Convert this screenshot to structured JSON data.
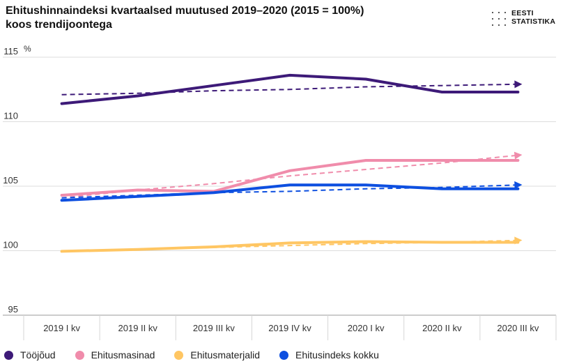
{
  "title": {
    "line1": "Ehitushinnaindeksi kvartaalsed muutused 2019–2020 (2015 = 100%)",
    "line2": "koos trendijoontega"
  },
  "logo": {
    "line1": "EESTI",
    "line2": "STATISTIKA"
  },
  "chart_data": {
    "type": "line",
    "title": "Ehitushinnaindeksi kvartaalsed muutused 2019–2020 (2015 = 100%) koos trendijoontega",
    "ylabel": "%",
    "xlabel": "",
    "categories": [
      "2019 I kv",
      "2019 II kv",
      "2019 III kv",
      "2019 IV kv",
      "2020 I kv",
      "2020 II kv",
      "2020 III kv"
    ],
    "ylim": [
      95,
      115
    ],
    "yticks": [
      95,
      100,
      105,
      110,
      115
    ],
    "grid": true,
    "legend_position": "bottom",
    "series": [
      {
        "name": "Tööjõud",
        "color": "#3d1a78",
        "values": [
          111.4,
          112.0,
          112.8,
          113.6,
          113.3,
          112.3,
          112.3
        ],
        "trend": [
          112.1,
          112.2,
          112.4,
          112.5,
          112.7,
          112.8,
          112.9
        ]
      },
      {
        "name": "Ehitusmasinad",
        "color": "#f08cab",
        "values": [
          104.3,
          104.7,
          104.6,
          106.2,
          107.0,
          107.0,
          107.0
        ],
        "trend": [
          104.1,
          104.7,
          105.2,
          105.8,
          106.3,
          106.8,
          107.4
        ]
      },
      {
        "name": "Ehitusmaterjalid",
        "color": "#ffc663",
        "values": [
          99.95,
          100.1,
          100.3,
          100.6,
          100.7,
          100.65,
          100.65
        ],
        "trend": [
          99.95,
          100.1,
          100.25,
          100.4,
          100.55,
          100.65,
          100.8
        ]
      },
      {
        "name": "Ehitusindeks kokku",
        "color": "#0d4fe0",
        "values": [
          103.9,
          104.2,
          104.5,
          105.1,
          105.1,
          104.8,
          104.8
        ],
        "trend": [
          104.1,
          104.3,
          104.5,
          104.6,
          104.8,
          104.9,
          105.1
        ]
      }
    ]
  }
}
